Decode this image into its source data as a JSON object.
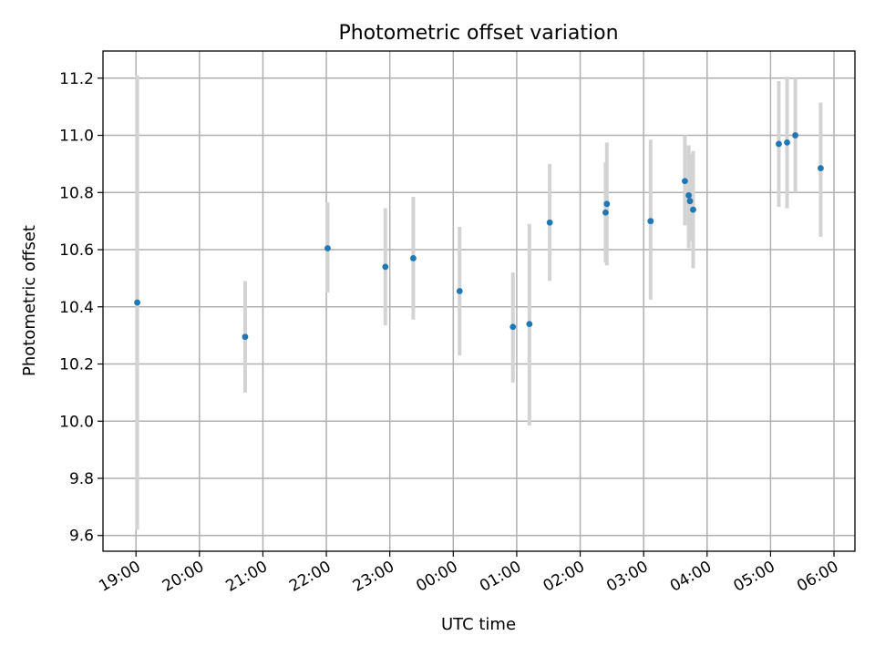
{
  "chart_data": {
    "type": "scatter",
    "title": "Photometric offset variation",
    "xlabel": "UTC time",
    "ylabel": "Photometric offset",
    "x_tick_labels": [
      "19:00",
      "20:00",
      "21:00",
      "22:00",
      "23:00",
      "00:00",
      "01:00",
      "02:00",
      "03:00",
      "04:00",
      "05:00",
      "06:00"
    ],
    "x_ticks_hours": [
      19,
      20,
      21,
      22,
      23,
      24,
      25,
      26,
      27,
      28,
      29,
      30
    ],
    "xlim_hours": [
      18.48,
      30.33
    ],
    "y_ticks": [
      9.6,
      9.8,
      10.0,
      10.2,
      10.4,
      10.6,
      10.8,
      11.0,
      11.2
    ],
    "ylim": [
      9.545,
      11.295
    ],
    "grid": true,
    "colors": {
      "point": "#1f77b4",
      "errorbar": "#d3d3d3",
      "grid": "#b0b0b0"
    },
    "x_hours": [
      19.02,
      20.72,
      22.02,
      22.93,
      23.37,
      24.1,
      24.94,
      25.2,
      25.52,
      26.4,
      26.42,
      27.11,
      27.65,
      27.71,
      27.73,
      27.78,
      29.13,
      29.26,
      29.39,
      29.79
    ],
    "y": [
      10.415,
      10.295,
      10.605,
      10.54,
      10.57,
      10.455,
      10.33,
      10.34,
      10.695,
      10.73,
      10.76,
      10.7,
      10.84,
      10.79,
      10.77,
      10.74,
      10.97,
      10.975,
      11.0,
      10.885
    ],
    "yerr_low": [
      9.62,
      10.1,
      10.45,
      10.335,
      10.355,
      10.23,
      10.135,
      9.985,
      10.49,
      10.555,
      10.545,
      10.425,
      10.685,
      10.605,
      10.63,
      10.535,
      10.75,
      10.745,
      10.8,
      10.645
    ],
    "yerr_high": [
      11.21,
      10.49,
      10.765,
      10.745,
      10.785,
      10.68,
      10.52,
      10.69,
      10.9,
      10.905,
      10.975,
      10.985,
      11.0,
      10.965,
      10.935,
      10.945,
      11.19,
      11.205,
      11.2,
      11.115
    ]
  }
}
